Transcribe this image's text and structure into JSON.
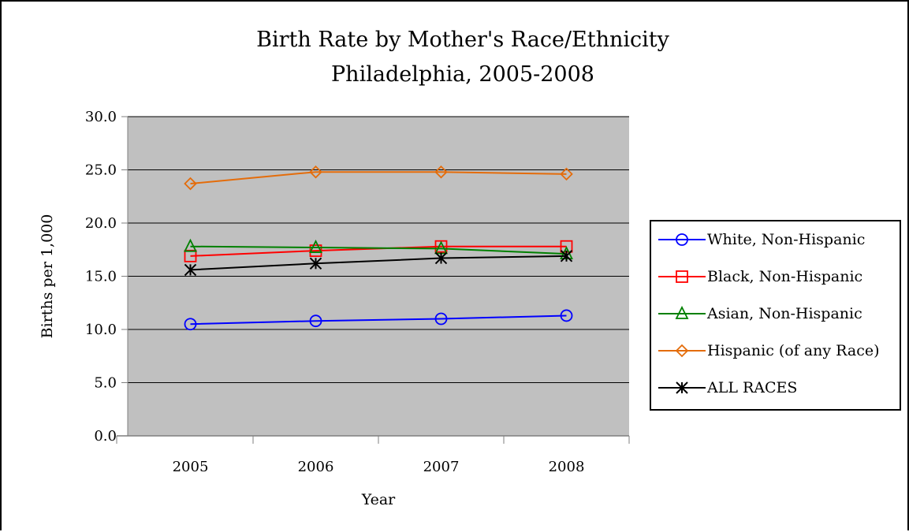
{
  "chart_data": {
    "type": "line",
    "title": "Birth Rate by Mother's Race/Ethnicity",
    "subtitle": "Philadelphia, 2005-2008",
    "xlabel": "Year",
    "ylabel": "Births per 1,000",
    "categories": [
      "2005",
      "2006",
      "2007",
      "2008"
    ],
    "ylim": [
      0,
      30
    ],
    "yticks": [
      "0.0",
      "5.0",
      "10.0",
      "15.0",
      "20.0",
      "25.0",
      "30.0"
    ],
    "grid": true,
    "plot_background": "#c0c0c0",
    "legend_position": "right",
    "series": [
      {
        "name": "White, Non-Hispanic",
        "color": "#0000ff",
        "marker": "circle",
        "values": [
          10.5,
          10.8,
          11.0,
          11.3
        ]
      },
      {
        "name": "Black, Non-Hispanic",
        "color": "#ff0000",
        "marker": "square",
        "values": [
          16.9,
          17.4,
          17.8,
          17.8
        ]
      },
      {
        "name": "Asian, Non-Hispanic",
        "color": "#008000",
        "marker": "triangle",
        "values": [
          17.8,
          17.7,
          17.6,
          17.1
        ]
      },
      {
        "name": "Hispanic (of any Race)",
        "color": "#e46c0a",
        "marker": "diamond",
        "values": [
          23.7,
          24.8,
          24.8,
          24.6
        ]
      },
      {
        "name": "ALL RACES",
        "color": "#000000",
        "marker": "star",
        "values": [
          15.6,
          16.2,
          16.7,
          16.9
        ]
      }
    ]
  }
}
